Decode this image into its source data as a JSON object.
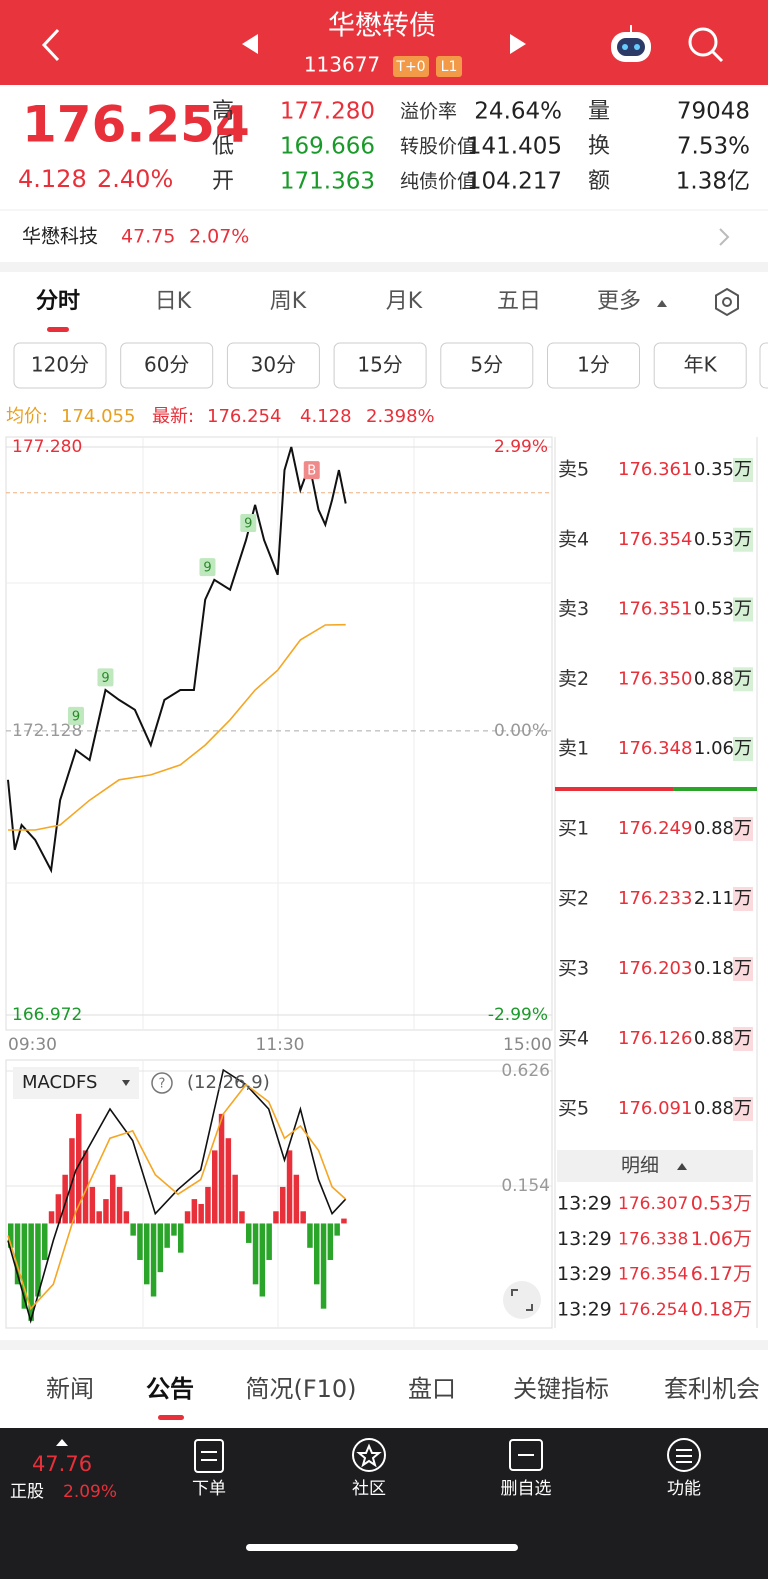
{
  "header": {
    "title": "华懋转债",
    "code": "113677",
    "tags": [
      "T+0",
      "L1"
    ]
  },
  "quote": {
    "price": "176.254",
    "change": "4.128",
    "change_pct": "2.40%",
    "fields": [
      [
        {
          "label": "高",
          "value": "177.280",
          "color": "#e8303a"
        },
        {
          "label": "溢价率",
          "value": "24.64%"
        },
        {
          "label": "量",
          "value": "79048"
        }
      ],
      [
        {
          "label": "低",
          "value": "169.666",
          "color": "#1a9a2a"
        },
        {
          "label": "转股价值",
          "value": "141.405"
        },
        {
          "label": "换",
          "value": "7.53%"
        }
      ],
      [
        {
          "label": "开",
          "value": "171.363",
          "color": "#1a9a2a"
        },
        {
          "label": "纯债价值",
          "value": "104.217"
        },
        {
          "label": "额",
          "value": "1.38亿"
        }
      ]
    ]
  },
  "stock": {
    "name": "华懋科技",
    "price": "47.75",
    "change_pct": "2.07%"
  },
  "tabs": [
    "分时",
    "日K",
    "周K",
    "月K",
    "五日",
    "更多"
  ],
  "periods": [
    "120分",
    "60分",
    "30分",
    "15分",
    "5分",
    "1分",
    "年K"
  ],
  "summary": {
    "avg_label": "均价:",
    "avg": "174.055",
    "last_label": "最新:",
    "last": "176.254",
    "change": "4.128",
    "change_pct": "2.398%"
  },
  "chart_data": [
    {
      "type": "line",
      "xlim": [
        0,
        240
      ],
      "xticks": [
        {
          "value": 0,
          "label": "09:30"
        },
        {
          "value": 120,
          "label": "11:30"
        },
        {
          "value": 240,
          "label": "15:00"
        }
      ],
      "ylim": [
        166.972,
        177.28
      ],
      "yticks": [
        166.972,
        172.128,
        {
          "value": 177.28,
          "label": "177.280"
        }
      ],
      "y2lim": [
        -2.99,
        2.99
      ],
      "y2ticks": [
        {
          "value": -2.99,
          "label": "-2.99%"
        },
        {
          "value": 0,
          "label": "0.00%"
        },
        {
          "value": 2.99,
          "label": "2.99%"
        }
      ],
      "series": [
        {
          "color": "#111111",
          "x": [
            0,
            3,
            6,
            12,
            19,
            23,
            30,
            36,
            43,
            49,
            56,
            63,
            69,
            76,
            82,
            87,
            91,
            98,
            105,
            109,
            113,
            119,
            122,
            125,
            129,
            133,
            137,
            140,
            143,
            146,
            149
          ],
          "values": [
            171.24,
            169.97,
            170.42,
            170.15,
            169.6,
            170.87,
            171.78,
            171.6,
            172.87,
            172.69,
            172.51,
            171.87,
            172.69,
            172.87,
            172.87,
            174.51,
            174.87,
            174.69,
            175.59,
            176.23,
            175.59,
            174.96,
            176.86,
            177.28,
            176.5,
            176.95,
            176.14,
            175.87,
            176.32,
            176.86,
            176.254
          ]
        },
        {
          "color": "#f5a623",
          "x": [
            0,
            12,
            23,
            36,
            49,
            63,
            76,
            87,
            98,
            109,
            119,
            129,
            140,
            149
          ],
          "values": [
            170.33,
            170.33,
            170.42,
            170.87,
            171.24,
            171.33,
            171.51,
            171.87,
            172.33,
            172.87,
            173.23,
            173.78,
            174.05,
            174.055
          ]
        }
      ],
      "markers": [
        {
          "label": "9",
          "x": 30,
          "y": 172.4
        },
        {
          "label": "9",
          "x": 43,
          "y": 173.1
        },
        {
          "label": "9",
          "x": 88,
          "y": 175.1
        },
        {
          "label": "9",
          "x": 106,
          "y": 175.9
        },
        {
          "label": "B",
          "x": 134,
          "y": 176.86
        }
      ],
      "reference_lines": [
        176.45
      ]
    },
    {
      "type": "macd",
      "title": "MACDFS",
      "params": "(12,26,9)",
      "xlim": [
        0,
        240
      ],
      "ylim": [
        -0.417,
        0.626
      ],
      "yticks": [
        0.154,
        0.626
      ],
      "bars": {
        "positive_color": "#e8303a",
        "negative_color": "#2aa52a",
        "x": [
          0,
          3,
          6,
          9,
          12,
          15,
          18,
          21,
          24,
          27,
          30,
          33,
          36,
          39,
          42,
          45,
          48,
          51,
          54,
          57,
          60,
          63,
          66,
          69,
          72,
          75,
          78,
          81,
          84,
          87,
          90,
          93,
          96,
          99,
          102,
          105,
          108,
          111,
          114,
          117,
          120,
          123,
          126,
          129,
          132,
          135,
          138,
          141,
          144,
          147
        ],
        "values": [
          -0.1,
          -0.25,
          -0.35,
          -0.4,
          -0.3,
          -0.15,
          0.05,
          0.12,
          0.2,
          0.35,
          0.45,
          0.3,
          0.15,
          0.05,
          0.1,
          0.2,
          0.15,
          0.05,
          -0.05,
          -0.15,
          -0.25,
          -0.3,
          -0.2,
          -0.1,
          -0.05,
          -0.12,
          0.05,
          0.1,
          0.08,
          0.15,
          0.3,
          0.45,
          0.35,
          0.2,
          0.05,
          -0.08,
          -0.25,
          -0.3,
          -0.15,
          0.05,
          0.15,
          0.3,
          0.2,
          0.05,
          -0.1,
          -0.25,
          -0.35,
          -0.15,
          -0.05,
          0.02
        ]
      },
      "series": [
        {
          "color": "#111111",
          "x": [
            0,
            10,
            20,
            30,
            45,
            55,
            65,
            75,
            85,
            95,
            105,
            115,
            122,
            129,
            137,
            143,
            149
          ],
          "values": [
            -0.07,
            -0.4,
            -0.07,
            0.22,
            0.47,
            0.34,
            0.04,
            0.14,
            0.22,
            0.63,
            0.57,
            0.47,
            0.26,
            0.47,
            0.18,
            0.04,
            0.1
          ]
        },
        {
          "color": "#f5a623",
          "x": [
            0,
            10,
            20,
            30,
            45,
            55,
            65,
            75,
            85,
            95,
            105,
            115,
            122,
            129,
            137,
            143,
            149
          ],
          "values": [
            -0.05,
            -0.35,
            -0.25,
            0.05,
            0.35,
            0.38,
            0.2,
            0.12,
            0.18,
            0.45,
            0.57,
            0.5,
            0.35,
            0.4,
            0.3,
            0.15,
            0.1
          ]
        }
      ]
    }
  ],
  "orderbook": {
    "asks": [
      {
        "label": "卖5",
        "price": "176.361",
        "volume": "0.35万"
      },
      {
        "label": "卖4",
        "price": "176.354",
        "volume": "0.53万"
      },
      {
        "label": "卖3",
        "price": "176.351",
        "volume": "0.53万"
      },
      {
        "label": "卖2",
        "price": "176.350",
        "volume": "0.88万"
      },
      {
        "label": "卖1",
        "price": "176.348",
        "volume": "1.06万"
      }
    ],
    "bids": [
      {
        "label": "买1",
        "price": "176.249",
        "volume": "0.88万"
      },
      {
        "label": "买2",
        "price": "176.233",
        "volume": "2.11万"
      },
      {
        "label": "买3",
        "price": "176.203",
        "volume": "0.18万"
      },
      {
        "label": "买4",
        "price": "176.126",
        "volume": "0.88万"
      },
      {
        "label": "买5",
        "price": "176.091",
        "volume": "0.88万"
      }
    ],
    "detail_label": "明细",
    "trades": [
      {
        "time": "13:29",
        "price": "176.307",
        "volume": "0.53万"
      },
      {
        "time": "13:29",
        "price": "176.338",
        "volume": "1.06万"
      },
      {
        "time": "13:29",
        "price": "176.354",
        "volume": "6.17万"
      },
      {
        "time": "13:29",
        "price": "176.254",
        "volume": "0.18万"
      }
    ]
  },
  "bottom_tabs": [
    "新闻",
    "公告",
    "简况(F10)",
    "盘口",
    "关键指标",
    "套利机会"
  ],
  "nav": {
    "price": "47.76",
    "label": "正股",
    "change_pct": "2.09%",
    "items": [
      "下单",
      "社区",
      "删自选",
      "功能"
    ]
  }
}
